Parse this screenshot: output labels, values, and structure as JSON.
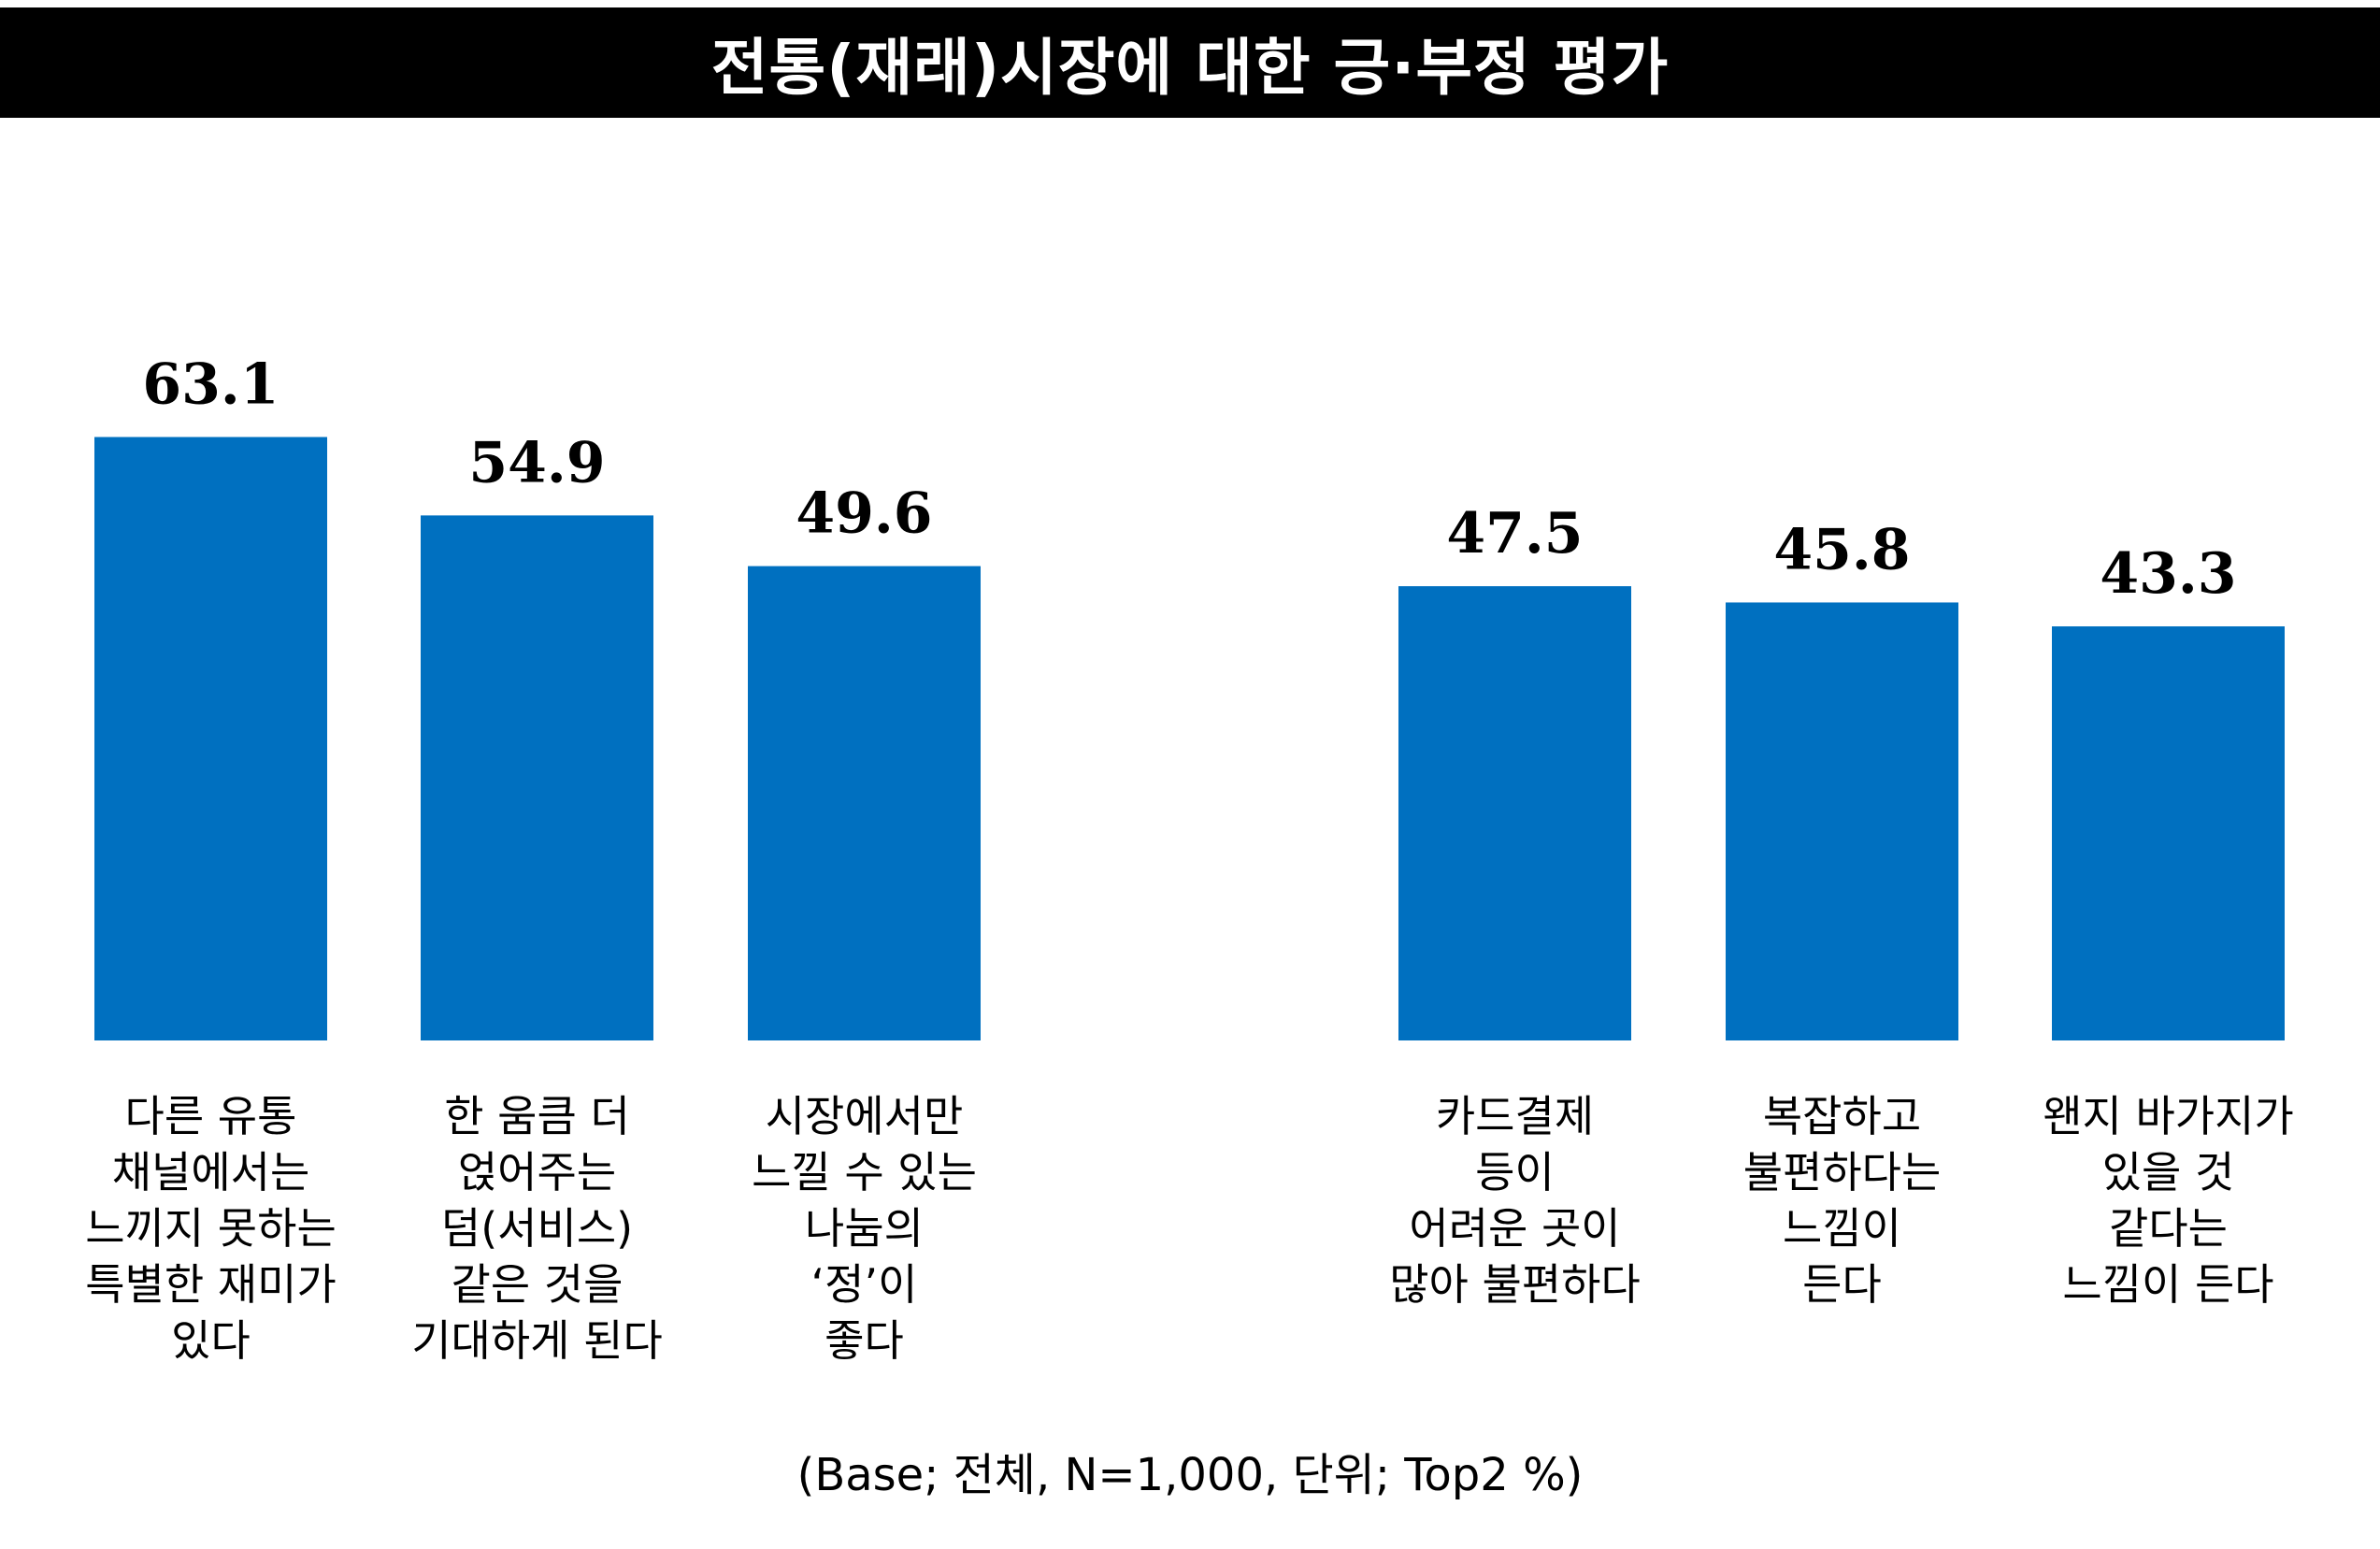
{
  "title": "전통(재래)시장에 대한 긍·부정 평가",
  "footnote": "(Base; 전체, N=1,000, 단위; Top2 %)",
  "chart_data": {
    "type": "bar",
    "title": "전통(재래)시장에 대한 긍·부정 평가",
    "xlabel": "",
    "ylabel": "",
    "ylim": [
      0,
      70
    ],
    "grid": false,
    "bar_color": "#0070C0",
    "categories": [
      [
        "다른 유통",
        "채널에서는",
        "느끼지 못하는",
        "특별한 재미가",
        "있다"
      ],
      [
        "한 움큼 더",
        "얹어주는",
        "덤(서비스)",
        "같은 것을",
        "기대하게 된다"
      ],
      [
        "시장에서만",
        "느낄 수 있는",
        "나눔의",
        "‘정’이",
        "좋다"
      ],
      [
        "카드결제",
        "등이",
        "어려운 곳이",
        "많아 불편하다"
      ],
      [
        "복잡하고",
        "불편하다는",
        "느낌이",
        "든다"
      ],
      [
        "왠지 바가지가",
        "있을 것",
        "같다는",
        "느낌이 든다"
      ]
    ],
    "values": [
      63.1,
      54.9,
      49.6,
      47.5,
      45.8,
      43.3
    ],
    "value_labels": [
      "63.1",
      "54.9",
      "49.6",
      "47.5",
      "45.8",
      "43.3"
    ],
    "groups": [
      [
        0,
        1,
        2
      ],
      [
        3,
        4,
        5
      ]
    ]
  }
}
